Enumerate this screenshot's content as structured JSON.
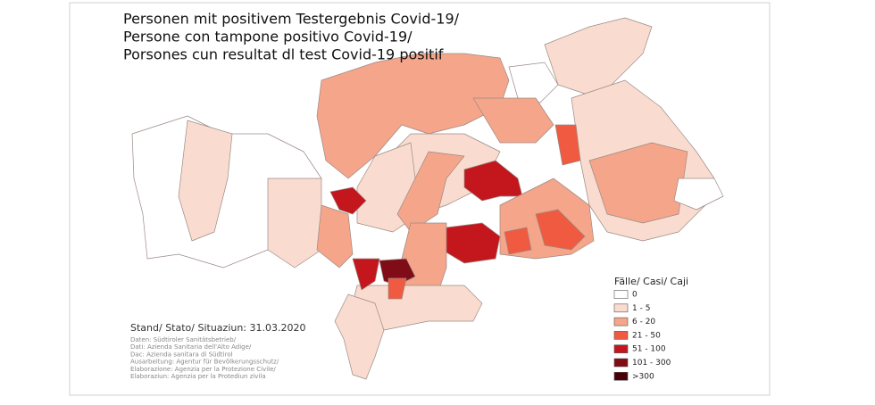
{
  "title": [
    "Personen mit  positivem Testergebnis Covid-19/",
    "Persone con tampone  positivo Covid-19/",
    "Porsones cun resultat dl test Covid-19 positif"
  ],
  "legend": {
    "title": "Fälle/ Casi/ Caji",
    "items": [
      {
        "label": "0",
        "color": "#ffffff"
      },
      {
        "label": "1 - 5",
        "color": "#f9dccf"
      },
      {
        "label": "6 - 20",
        "color": "#f4a58a"
      },
      {
        "label": "21 - 50",
        "color": "#ef5a40"
      },
      {
        "label": "51 - 100",
        "color": "#c3161d"
      },
      {
        "label": "101 - 300",
        "color": "#7f0c16"
      },
      {
        "label": ">300",
        "color": "#4a0008"
      }
    ]
  },
  "date_label": "Stand/ Stato/ Situaziun: 31.03.2020",
  "sources": [
    "Daten: Südtiroler Sanitätsbetrieb/",
    "Dati: Azienda Sanitaria dell'Alto Adige/",
    "Dac: Azienda sanitara di Südtirol",
    "Ausarbeitung: Agentur für Bevölkerungsschutz/",
    "Elaborazione: Agenzia per la Protezione Civile/",
    "Elaboraziun: Agenzia per la Protediun zivila"
  ]
}
